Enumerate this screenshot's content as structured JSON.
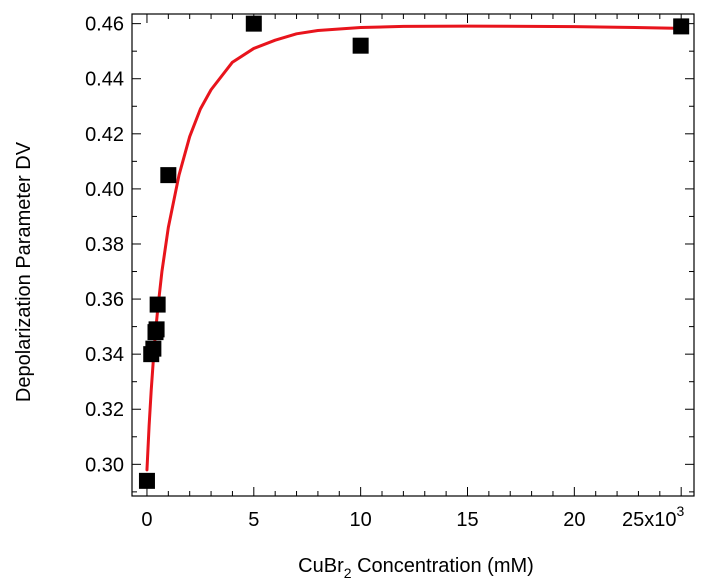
{
  "chart_data": {
    "type": "scatter",
    "xlabel": {
      "prefix": "CuBr",
      "subscript": "2",
      "suffix": " Concentration  (mM)"
    },
    "ylabel": "Depolarization Parameter DV",
    "xlim": [
      -700,
      25600
    ],
    "ylim": [
      0.2885,
      0.4635
    ],
    "x_ticks": [
      0,
      5000,
      10000,
      15000,
      20000,
      25000
    ],
    "x_tick_labels": [
      "0",
      "5",
      "10",
      "15",
      "20",
      "25x10"
    ],
    "x_tick_label_superscript": {
      "index": 5,
      "text": "3"
    },
    "x_minor_ticks": [
      1000,
      2000,
      3000,
      4000,
      6000,
      7000,
      8000,
      9000,
      11000,
      12000,
      13000,
      14000,
      16000,
      17000,
      18000,
      19000,
      21000,
      22000,
      23000,
      24000
    ],
    "y_ticks": [
      0.3,
      0.32,
      0.34,
      0.36,
      0.38,
      0.4,
      0.42,
      0.44,
      0.46
    ],
    "y_tick_labels": [
      "0.30",
      "0.32",
      "0.34",
      "0.36",
      "0.38",
      "0.40",
      "0.42",
      "0.44",
      "0.46"
    ],
    "y_minor_ticks": [
      0.29,
      0.31,
      0.33,
      0.35,
      0.37,
      0.39,
      0.41,
      0.43,
      0.45
    ],
    "grid": false,
    "series": [
      {
        "kind": "scatter",
        "marker": "square",
        "color": "#000000",
        "points": [
          {
            "x": 0,
            "y": 0.294
          },
          {
            "x": 200,
            "y": 0.34
          },
          {
            "x": 300,
            "y": 0.342
          },
          {
            "x": 400,
            "y": 0.348
          },
          {
            "x": 450,
            "y": 0.349
          },
          {
            "x": 500,
            "y": 0.358
          },
          {
            "x": 1000,
            "y": 0.405
          },
          {
            "x": 5000,
            "y": 0.46
          },
          {
            "x": 10000,
            "y": 0.452
          },
          {
            "x": 25000,
            "y": 0.459
          }
        ]
      },
      {
        "kind": "line",
        "color": "#e8141c",
        "points": [
          {
            "x": 0,
            "y": 0.298
          },
          {
            "x": 100,
            "y": 0.314
          },
          {
            "x": 200,
            "y": 0.327
          },
          {
            "x": 300,
            "y": 0.338
          },
          {
            "x": 400,
            "y": 0.348
          },
          {
            "x": 500,
            "y": 0.356
          },
          {
            "x": 700,
            "y": 0.37
          },
          {
            "x": 1000,
            "y": 0.386
          },
          {
            "x": 1500,
            "y": 0.405
          },
          {
            "x": 2000,
            "y": 0.419
          },
          {
            "x": 2500,
            "y": 0.429
          },
          {
            "x": 3000,
            "y": 0.436
          },
          {
            "x": 4000,
            "y": 0.446
          },
          {
            "x": 5000,
            "y": 0.451
          },
          {
            "x": 6000,
            "y": 0.454
          },
          {
            "x": 7000,
            "y": 0.4563
          },
          {
            "x": 8000,
            "y": 0.4575
          },
          {
            "x": 10000,
            "y": 0.4586
          },
          {
            "x": 12000,
            "y": 0.459
          },
          {
            "x": 15000,
            "y": 0.4591
          },
          {
            "x": 18000,
            "y": 0.459
          },
          {
            "x": 20000,
            "y": 0.4589
          },
          {
            "x": 22000,
            "y": 0.4587
          },
          {
            "x": 25000,
            "y": 0.4583
          }
        ]
      }
    ]
  }
}
